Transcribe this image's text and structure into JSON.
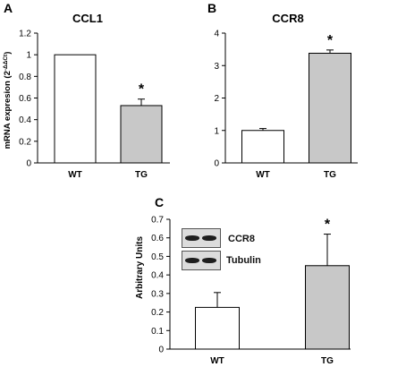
{
  "chart_data": [
    {
      "panel": "A",
      "type": "bar",
      "title": "CCL1",
      "ylabel": "mRNA expresion (2",
      "ylabel_sup": "-ΔΔCt",
      "ylabel_end": ")",
      "categories": [
        "WT",
        "TG"
      ],
      "values": [
        1.0,
        0.53
      ],
      "errors": [
        0,
        0.06
      ],
      "significance": [
        "",
        "*"
      ],
      "ylim": [
        0,
        1.2
      ],
      "yticks": [
        "0",
        "0.2",
        "0.4",
        "0.6",
        "0.8",
        "1",
        "1.2"
      ],
      "grid": false
    },
    {
      "panel": "B",
      "type": "bar",
      "title": "CCR8",
      "ylabel": "",
      "categories": [
        "WT",
        "TG"
      ],
      "values": [
        1.0,
        3.38
      ],
      "errors": [
        0.06,
        0.1
      ],
      "significance": [
        "",
        "*"
      ],
      "ylim": [
        0,
        4
      ],
      "yticks": [
        "0",
        "1",
        "2",
        "3",
        "4"
      ],
      "grid": false
    },
    {
      "panel": "C",
      "type": "bar",
      "title": "",
      "ylabel": "Arbitrary Units",
      "categories": [
        "WT",
        "TG"
      ],
      "values": [
        0.225,
        0.45
      ],
      "errors": [
        0.08,
        0.17
      ],
      "significance": [
        "",
        "*"
      ],
      "ylim": [
        0,
        0.7
      ],
      "yticks": [
        "0",
        "0.1",
        "0.2",
        "0.3",
        "0.4",
        "0.5",
        "0.6",
        "0.7"
      ],
      "grid": false,
      "inset_blot": {
        "labels": [
          "CCR8",
          "Tubulin"
        ]
      }
    }
  ],
  "colors": {
    "wt_bar": "#ffffff",
    "tg_bar": "#c8c8c8",
    "axis": "#000000",
    "blot_background": "#dcdcdc",
    "band": "#1e1e1e"
  }
}
